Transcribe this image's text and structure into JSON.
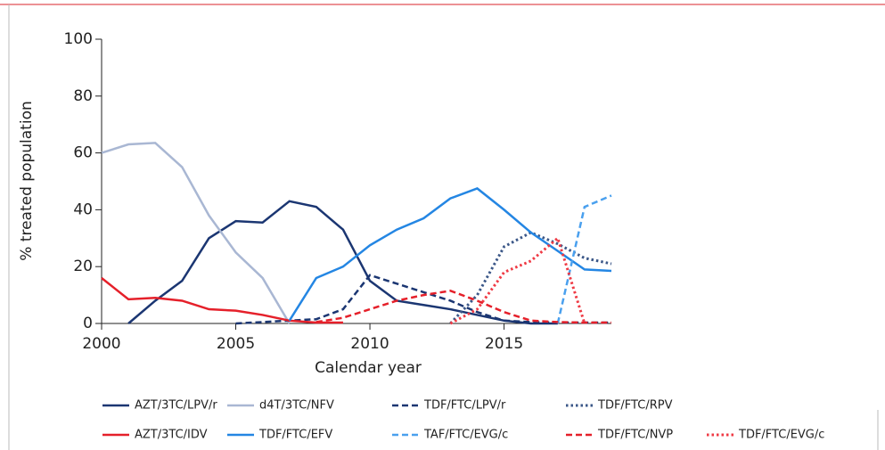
{
  "chart_data": {
    "type": "line",
    "xlabel": "Calendar year",
    "ylabel": "% treated population",
    "x": [
      2000,
      2001,
      2002,
      2003,
      2004,
      2005,
      2006,
      2007,
      2008,
      2009,
      2010,
      2011,
      2012,
      2013,
      2014,
      2015,
      2016,
      2017,
      2018,
      2019
    ],
    "xlim": [
      2000,
      2019
    ],
    "xticks": [
      2000,
      2005,
      2010,
      2015
    ],
    "ylim": [
      0,
      100
    ],
    "yticks": [
      0,
      20,
      40,
      60,
      80,
      100
    ],
    "series": [
      {
        "name": "AZT/3TC/LPV/r",
        "color": "#1b3672",
        "dash": "solid",
        "values": [
          null,
          0,
          8,
          15,
          30,
          36,
          35.5,
          43,
          41,
          33,
          15,
          8,
          6.5,
          5,
          3,
          1,
          0,
          0,
          null,
          null
        ]
      },
      {
        "name": "d4T/3TC/NFV",
        "color": "#a9b7d3",
        "dash": "solid",
        "values": [
          60,
          63,
          63.5,
          55,
          38,
          25,
          16,
          0,
          null,
          null,
          null,
          null,
          null,
          null,
          null,
          null,
          null,
          null,
          null,
          null
        ]
      },
      {
        "name": "TDF/FTC/LPV/r",
        "color": "#1b3672",
        "dash": "dashed",
        "values": [
          null,
          null,
          null,
          null,
          null,
          0,
          0.5,
          1,
          1.5,
          5,
          17,
          14,
          11,
          8,
          4,
          1,
          0.5,
          0.3,
          0.3,
          0.3
        ]
      },
      {
        "name": "TDF/FTC/RPV",
        "color": "#3b5788",
        "dash": "dotted",
        "values": [
          null,
          null,
          null,
          null,
          null,
          null,
          null,
          null,
          null,
          null,
          null,
          null,
          null,
          0,
          10,
          27,
          32,
          28,
          23,
          21
        ]
      },
      {
        "name": "AZT/3TC/IDV",
        "color": "#e5202a",
        "dash": "solid",
        "values": [
          16,
          8.5,
          9,
          8,
          5,
          4.5,
          3,
          1,
          0.3,
          0.3,
          null,
          null,
          null,
          null,
          null,
          null,
          null,
          null,
          null,
          null
        ]
      },
      {
        "name": "TDF/FTC/EFV",
        "color": "#2486e3",
        "dash": "solid",
        "values": [
          null,
          null,
          null,
          null,
          null,
          null,
          null,
          1,
          16,
          20,
          27.5,
          33,
          37,
          44,
          47.5,
          40,
          32,
          25.5,
          19,
          18.5
        ]
      },
      {
        "name": "TAF/FTC/EVG/c",
        "color": "#4aa0ee",
        "dash": "dashed",
        "values": [
          null,
          null,
          null,
          null,
          null,
          null,
          null,
          null,
          null,
          null,
          null,
          null,
          null,
          null,
          null,
          null,
          null,
          0,
          41,
          45
        ]
      },
      {
        "name": "TDF/FTC/NVP",
        "color": "#e5202a",
        "dash": "dashed",
        "values": [
          null,
          null,
          null,
          null,
          null,
          null,
          null,
          null,
          0.5,
          2,
          5,
          8,
          10,
          11.5,
          8,
          4,
          1,
          0.5,
          0.3,
          0.3
        ]
      },
      {
        "name": "TDF/FTC/EVG/c",
        "color": "#ef3a44",
        "dash": "dotted",
        "values": [
          null,
          null,
          null,
          null,
          null,
          null,
          null,
          null,
          null,
          null,
          null,
          null,
          null,
          0,
          5,
          18,
          22,
          30,
          0,
          null
        ]
      }
    ]
  }
}
